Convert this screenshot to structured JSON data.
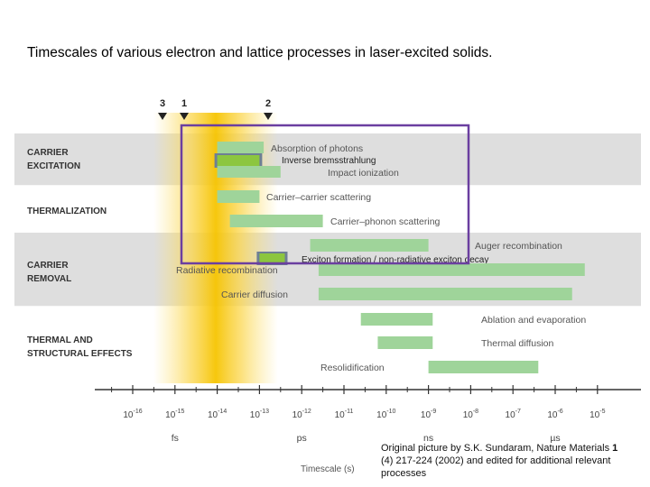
{
  "title": "Timescales of various electron and lattice processes in laser-excited solids.",
  "markers": [
    "3",
    "1",
    "2"
  ],
  "categories": [
    {
      "line1": "CARRIER",
      "line2": "EXCITATION"
    },
    {
      "line1": "THERMALIZATION",
      "line2": ""
    },
    {
      "line1": "CARRIER",
      "line2": "REMOVAL"
    },
    {
      "line1": "THERMAL AND",
      "line2": "STRUCTURAL EFFECTS"
    }
  ],
  "processes": [
    {
      "label": "Absorption of photons",
      "start_exp": -14.0,
      "end_exp": -12.9
    },
    {
      "label": "Inverse bremsstrahlung",
      "start_exp": -14.0,
      "end_exp": -13.0
    },
    {
      "label": "Impact ionization",
      "start_exp": -14.0,
      "end_exp": -12.5
    },
    {
      "label": "Carrier–carrier scattering",
      "start_exp": -14.0,
      "end_exp": -13.0
    },
    {
      "label": "Carrier–phonon scattering",
      "start_exp": -13.7,
      "end_exp": -11.5
    },
    {
      "label": "Auger recombination",
      "start_exp": -11.8,
      "end_exp": -9.0
    },
    {
      "label": "Exciton formation / non-radiative exciton decay",
      "start_exp": -13.0,
      "end_exp": -12.4
    },
    {
      "label": "Radiative recombination",
      "start_exp": -11.6,
      "end_exp": -5.3
    },
    {
      "label": "Carrier diffusion",
      "start_exp": -11.6,
      "end_exp": -5.6
    },
    {
      "label": "Ablation and evaporation",
      "start_exp": -10.6,
      "end_exp": -8.9
    },
    {
      "label": "Thermal diffusion",
      "start_exp": -10.2,
      "end_exp": -8.9
    },
    {
      "label": "Resolidification",
      "start_exp": -9.0,
      "end_exp": -6.4
    }
  ],
  "axis": {
    "ticks": [
      "10 -16",
      "10 -15",
      "10 -14",
      "10 -13",
      "10 -12",
      "10 -11",
      "10 -10",
      "10 -9",
      "10 -8",
      "10 -7",
      "10 -6",
      "10 -5"
    ],
    "units": [
      "fs",
      "ps",
      "ns",
      "µs"
    ],
    "label": "Timescale (s)"
  },
  "credit": {
    "prefix": "Original picture by S.K. Sundaram, Nature Materials ",
    "bold": "1",
    "suffix": " (4) 217-224 (2002) and edited for additional relevant processes"
  },
  "colors": {
    "bar": "#9fd49a",
    "band": "#dedede",
    "highlight_box": "#6b3fa0",
    "marked_bar": "#8cc63f",
    "marked_border": "#6e7f95",
    "pulse": "#f6c400"
  }
}
